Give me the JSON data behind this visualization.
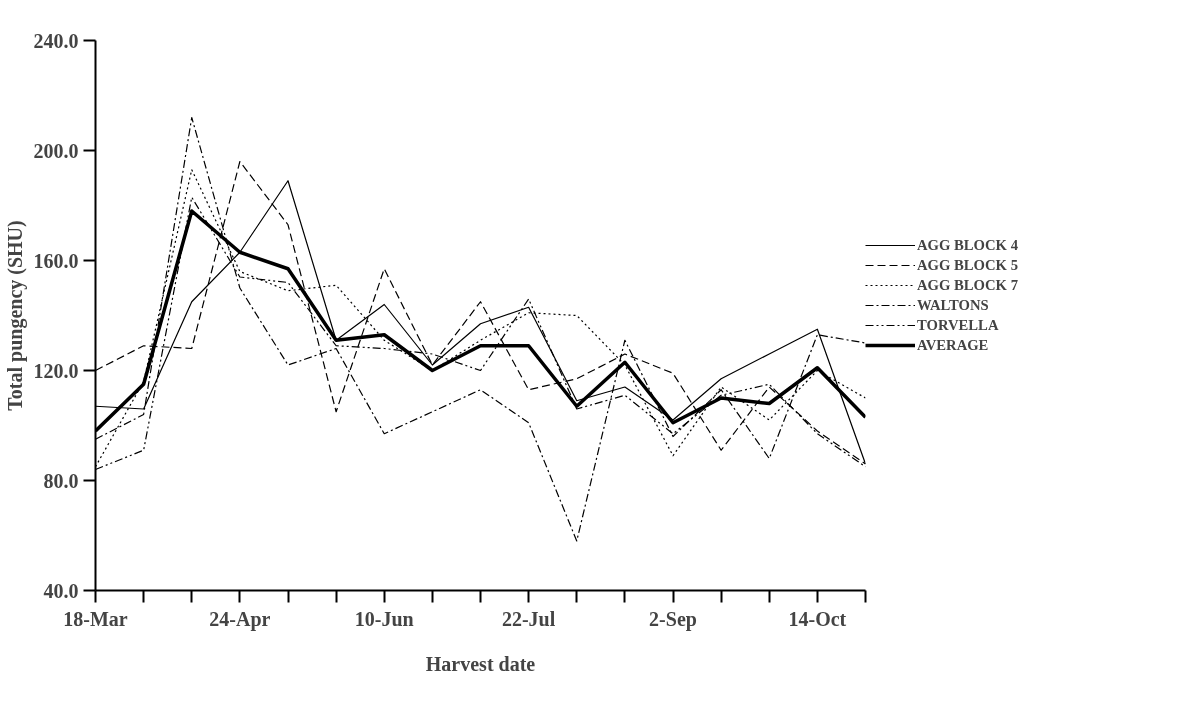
{
  "chart_data": {
    "type": "line",
    "xlabel": "Harvest date",
    "ylabel": "Total pungency (SHU)",
    "categories": [
      "18-Mar",
      null,
      null,
      "24-Apr",
      null,
      null,
      "10-Jun",
      null,
      null,
      "22-Jul",
      null,
      null,
      "2-Sep",
      null,
      null,
      "14-Oct",
      null
    ],
    "ylim": [
      40,
      240
    ],
    "yticks": [
      {
        "value": 40,
        "label": "40.0"
      },
      {
        "value": 80,
        "label": "80.0"
      },
      {
        "value": 120,
        "label": "120.0"
      },
      {
        "value": 160,
        "label": "160.0"
      },
      {
        "value": 200,
        "label": "200.0"
      },
      {
        "value": 240,
        "label": "240.0"
      }
    ],
    "grid": false,
    "legend": "right",
    "marker": "none",
    "series": [
      {
        "name": "AGG BLOCK 4",
        "color": "#000000",
        "line_style": "solid",
        "values": [
          107,
          106,
          145,
          163,
          189,
          131,
          144,
          122,
          137,
          143,
          109,
          114,
          102,
          117,
          126,
          135,
          86
        ]
      },
      {
        "name": "AGG BLOCK 5",
        "color": "#000000",
        "line_style": "dashed",
        "values": [
          120,
          129,
          128,
          196,
          173,
          105,
          157,
          122,
          145,
          113,
          117,
          126,
          119,
          91,
          114,
          98,
          86
        ]
      },
      {
        "name": "AGG BLOCK 7",
        "color": "#000000",
        "line_style": "dotted",
        "values": [
          85,
          116,
          193,
          156,
          149,
          151,
          131,
          120,
          131,
          141,
          140,
          122,
          89,
          114,
          102,
          120,
          110
        ]
      },
      {
        "name": "WALTONS",
        "color": "#000000",
        "line_style": "dashdot",
        "values": [
          95,
          104,
          212,
          150,
          122,
          128,
          97,
          105,
          113,
          101,
          58,
          131,
          96,
          113,
          88,
          133,
          130
        ]
      },
      {
        "name": "TORVELLA",
        "color": "#000000",
        "line_style": "dashdotdot",
        "values": [
          84,
          91,
          183,
          154,
          152,
          129,
          128,
          126,
          120,
          146,
          106,
          111,
          97,
          111,
          115,
          97,
          85
        ]
      },
      {
        "name": "AVERAGE",
        "color": "#000000",
        "line_style": "solid",
        "values": [
          98,
          115,
          178,
          163,
          157,
          131,
          133,
          120,
          129,
          129,
          107,
          123,
          101,
          110,
          108,
          121,
          103
        ]
      }
    ]
  }
}
